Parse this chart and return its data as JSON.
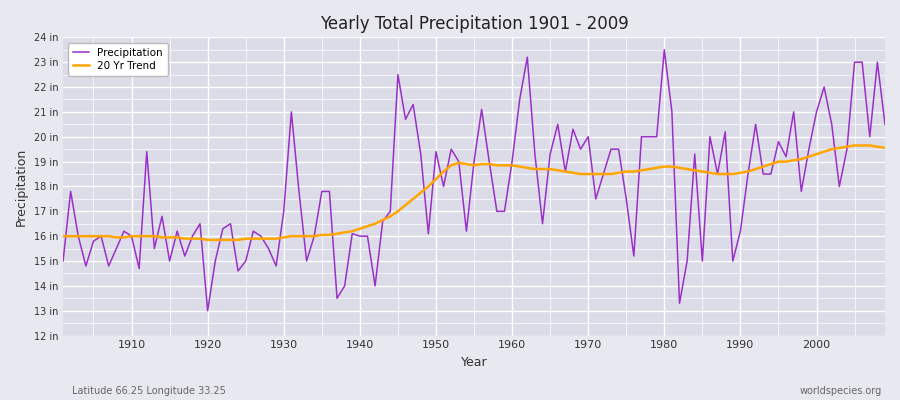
{
  "title": "Yearly Total Precipitation 1901 - 2009",
  "xlabel": "Year",
  "ylabel": "Precipitation",
  "footnote_left": "Latitude 66.25 Longitude 33.25",
  "footnote_right": "worldspecies.org",
  "legend_labels": [
    "Precipitation",
    "20 Yr Trend"
  ],
  "precip_color": "#9B30C8",
  "trend_color": "#FFA500",
  "plot_bg_color": "#DCDCE8",
  "fig_bg_color": "#E8E8F0",
  "ylim": [
    12,
    24
  ],
  "xlim": [
    1901,
    2009
  ],
  "xticks": [
    1910,
    1920,
    1930,
    1940,
    1950,
    1960,
    1970,
    1980,
    1990,
    2000
  ],
  "years": [
    1901,
    1902,
    1903,
    1904,
    1905,
    1906,
    1907,
    1908,
    1909,
    1910,
    1911,
    1912,
    1913,
    1914,
    1915,
    1916,
    1917,
    1918,
    1919,
    1920,
    1921,
    1922,
    1923,
    1924,
    1925,
    1926,
    1927,
    1928,
    1929,
    1930,
    1931,
    1932,
    1933,
    1934,
    1935,
    1936,
    1937,
    1938,
    1939,
    1940,
    1941,
    1942,
    1943,
    1944,
    1945,
    1946,
    1947,
    1948,
    1949,
    1950,
    1951,
    1952,
    1953,
    1954,
    1955,
    1956,
    1957,
    1958,
    1959,
    1960,
    1961,
    1962,
    1963,
    1964,
    1965,
    1966,
    1967,
    1968,
    1969,
    1970,
    1971,
    1972,
    1973,
    1974,
    1975,
    1976,
    1977,
    1978,
    1979,
    1980,
    1981,
    1982,
    1983,
    1984,
    1985,
    1986,
    1987,
    1988,
    1989,
    1990,
    1991,
    1992,
    1993,
    1994,
    1995,
    1996,
    1997,
    1998,
    1999,
    2000,
    2001,
    2002,
    2003,
    2004,
    2005,
    2006,
    2007,
    2008,
    2009
  ],
  "precip": [
    15.0,
    17.8,
    16.0,
    14.8,
    15.8,
    16.0,
    14.8,
    15.5,
    16.2,
    16.0,
    14.7,
    19.4,
    15.5,
    16.8,
    15.0,
    16.2,
    15.2,
    16.0,
    16.5,
    13.0,
    15.0,
    16.3,
    16.5,
    14.6,
    15.0,
    16.2,
    16.0,
    15.5,
    14.8,
    17.0,
    21.0,
    17.8,
    15.0,
    16.0,
    17.8,
    17.8,
    13.5,
    14.0,
    16.1,
    16.0,
    16.0,
    14.0,
    16.6,
    17.0,
    22.5,
    20.7,
    21.3,
    19.3,
    16.1,
    19.4,
    18.0,
    19.5,
    19.0,
    16.2,
    19.0,
    21.1,
    19.0,
    17.0,
    17.0,
    19.0,
    21.5,
    23.2,
    19.3,
    16.5,
    19.3,
    20.5,
    18.6,
    20.3,
    19.5,
    20.0,
    17.5,
    18.5,
    19.5,
    19.5,
    17.5,
    15.2,
    20.0,
    20.0,
    20.0,
    23.5,
    21.0,
    13.3,
    15.0,
    19.3,
    15.0,
    20.0,
    18.5,
    20.2,
    15.0,
    16.2,
    18.5,
    20.5,
    18.5,
    18.5,
    19.8,
    19.2,
    21.0,
    17.8,
    19.5,
    21.0,
    22.0,
    20.5,
    18.0,
    19.5,
    23.0,
    23.0,
    20.0,
    23.0,
    20.5
  ],
  "trend": [
    16.0,
    16.0,
    16.0,
    16.0,
    16.0,
    16.0,
    16.0,
    15.95,
    15.95,
    16.0,
    16.0,
    16.0,
    16.0,
    15.95,
    15.95,
    15.95,
    15.9,
    15.9,
    15.9,
    15.85,
    15.85,
    15.85,
    15.85,
    15.85,
    15.9,
    15.9,
    15.9,
    15.9,
    15.9,
    15.95,
    16.0,
    16.0,
    16.0,
    16.0,
    16.05,
    16.05,
    16.1,
    16.15,
    16.2,
    16.3,
    16.4,
    16.5,
    16.65,
    16.8,
    17.0,
    17.25,
    17.5,
    17.75,
    18.0,
    18.3,
    18.6,
    18.85,
    18.95,
    18.9,
    18.85,
    18.9,
    18.9,
    18.85,
    18.85,
    18.85,
    18.8,
    18.75,
    18.7,
    18.7,
    18.7,
    18.65,
    18.6,
    18.55,
    18.5,
    18.5,
    18.5,
    18.5,
    18.5,
    18.55,
    18.6,
    18.6,
    18.65,
    18.7,
    18.75,
    18.8,
    18.8,
    18.75,
    18.7,
    18.65,
    18.6,
    18.55,
    18.5,
    18.5,
    18.5,
    18.55,
    18.6,
    18.7,
    18.8,
    18.9,
    19.0,
    19.0,
    19.05,
    19.1,
    19.2,
    19.3,
    19.4,
    19.5,
    19.55,
    19.6,
    19.65,
    19.65,
    19.65,
    19.6,
    19.55
  ]
}
